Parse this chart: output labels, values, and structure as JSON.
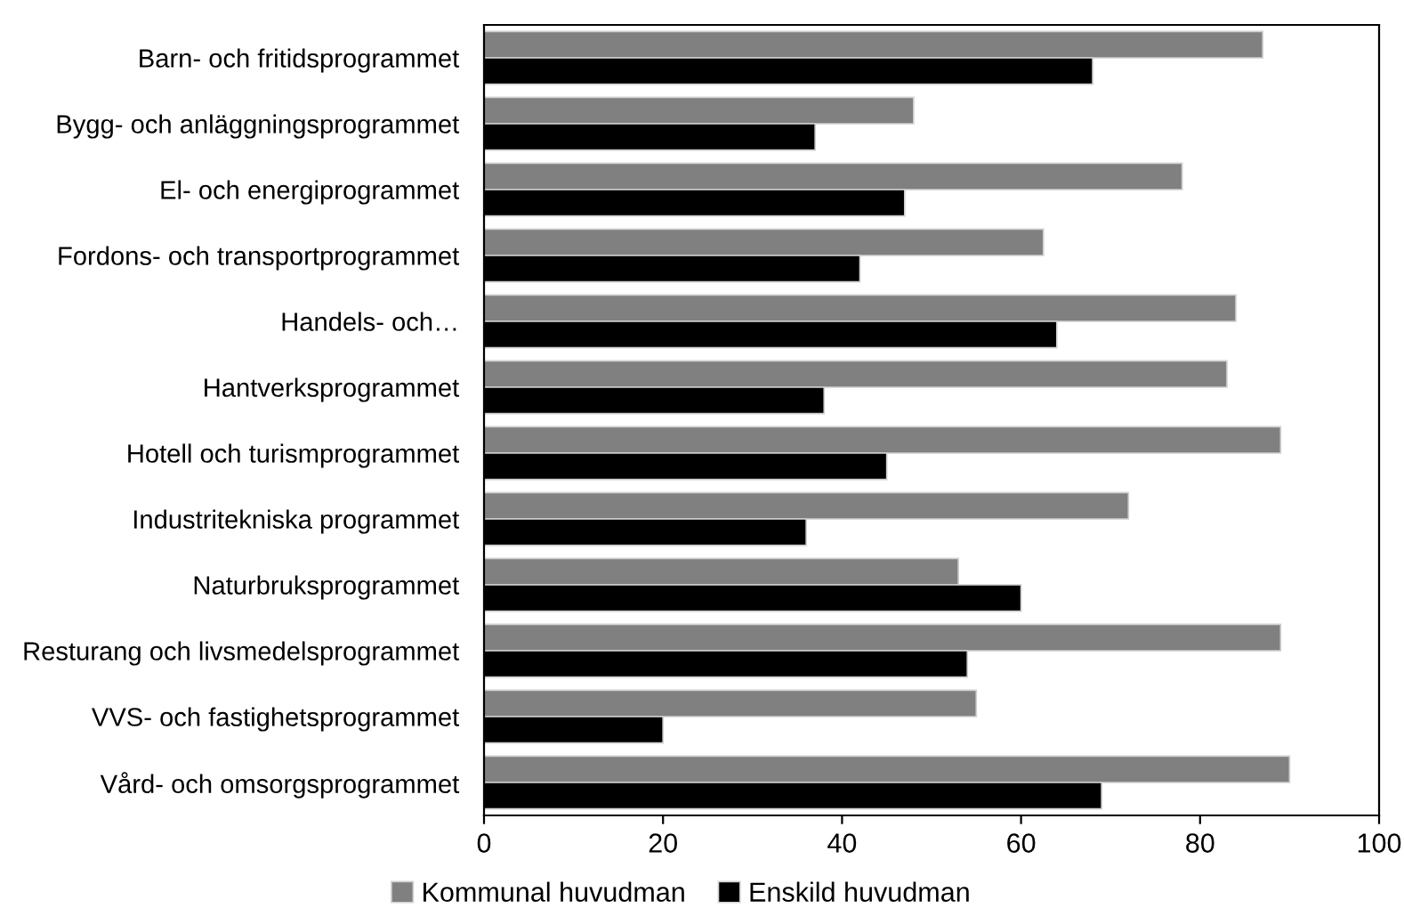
{
  "chart_data": {
    "type": "bar",
    "orientation": "horizontal",
    "categories": [
      "Barn- och fritidsprogrammet",
      "Bygg- och anläggningsprogrammet",
      "El- och energiprogrammet",
      "Fordons- och transportprogrammet",
      "Handels- och…",
      "Hantverksprogrammet",
      "Hotell och turismprogrammet",
      "Industritekniska programmet",
      "Naturbruksprogrammet",
      "Resturang och livsmedelsprogrammet",
      "VVS- och fastighetsprogrammet",
      "Vård- och omsorgsprogrammet"
    ],
    "series": [
      {
        "name": "Kommunal huvudman",
        "color": "#808080",
        "values": [
          87,
          48,
          78,
          62.5,
          84,
          83,
          89,
          72,
          53,
          89,
          55,
          90
        ]
      },
      {
        "name": "Enskild huvudman",
        "color": "#000000",
        "values": [
          68,
          37,
          47,
          42,
          64,
          38,
          45,
          36,
          60,
          54,
          20,
          69
        ]
      }
    ],
    "xlim": [
      0,
      100
    ],
    "xticks": [
      0,
      20,
      40,
      60,
      80,
      100
    ],
    "grid": false,
    "legend": "bottom"
  }
}
